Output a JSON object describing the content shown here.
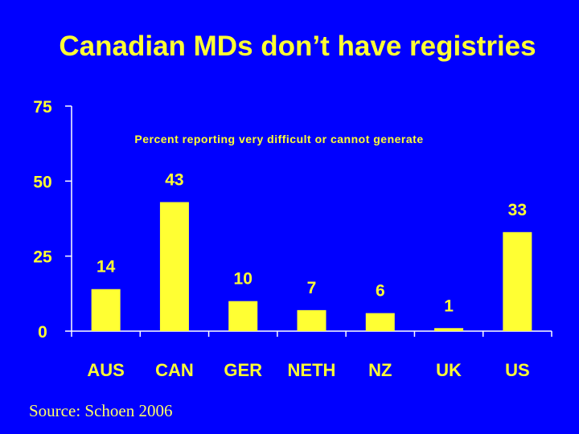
{
  "slide": {
    "title": "Canadian MDs don’t have registries",
    "source": "Source: Schoen 2006"
  },
  "colors": {
    "background": "#0000FF",
    "bar": "#FFFF33",
    "text": "#FFFF33",
    "axis": "#FFFFFF"
  },
  "chart_data": {
    "type": "bar",
    "title": "Percent reporting very difficult or cannot generate",
    "categories": [
      "AUS",
      "CAN",
      "GER",
      "NETH",
      "NZ",
      "UK",
      "US"
    ],
    "values": [
      14,
      43,
      10,
      7,
      6,
      1,
      33
    ],
    "value_labels": [
      "14",
      "43",
      "10",
      "7",
      "6",
      "1",
      "33"
    ],
    "yticks": [
      0,
      25,
      50,
      75
    ],
    "ytick_labels": [
      "0",
      "25",
      "50",
      "75"
    ],
    "ylim": [
      0,
      75
    ],
    "xlabel": "",
    "ylabel": ""
  }
}
